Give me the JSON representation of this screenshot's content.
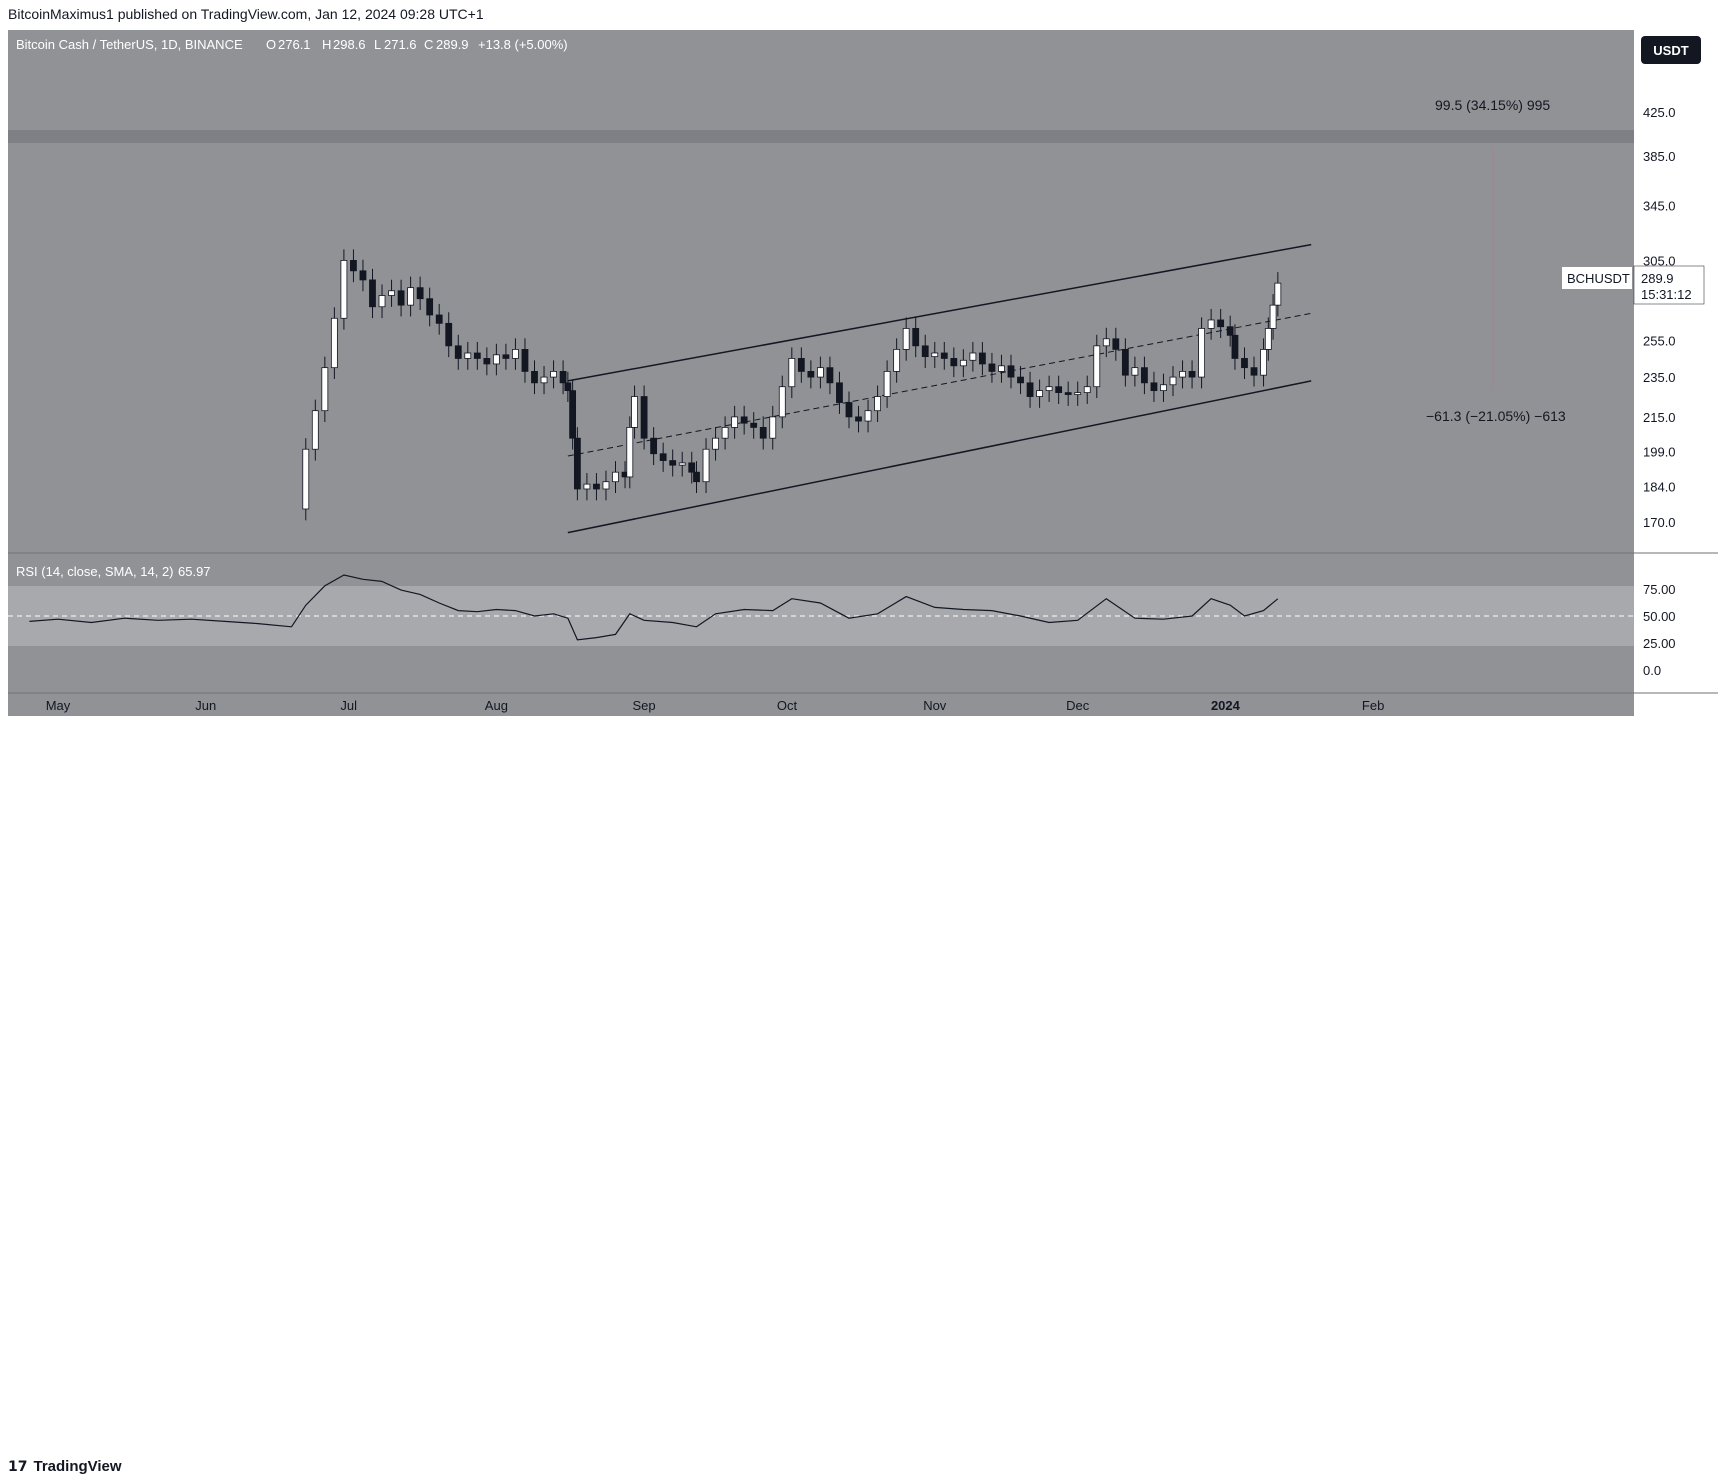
{
  "header": {
    "publisher": "BitcoinMaximus1 published on TradingView.com, Jan 12, 2024 09:28 UTC+1"
  },
  "legend": {
    "symbol": "Bitcoin Cash / TetherUS, 1D, BINANCE",
    "o_label": "O",
    "o_value": "276.1",
    "h_label": "H",
    "h_value": "298.6",
    "l_label": "L",
    "l_value": "271.6",
    "c_label": "C",
    "c_value": "289.9",
    "change": "+13.8 (+5.00%)"
  },
  "currency_label": "USDT",
  "price_tag": {
    "ticker": "BCHUSDT",
    "price": "289.9",
    "countdown": "15:31:12"
  },
  "measure_up": "99.5 (34.15%) 995",
  "measure_down": "−61.3 (−21.05%) −613",
  "rsi_legend": {
    "label": "RSI (14, close, SMA, 14, 2)",
    "value": "65.97"
  },
  "footer": {
    "logo_mark": "17",
    "brand": "TradingView"
  },
  "colors": {
    "background": "#909296",
    "rsi_band": "#a7a9ad",
    "candle_up": "#ffffff",
    "candle_down": "#131722",
    "resistance_zone": "#7e8085",
    "line": "#131722"
  },
  "chart_data": [
    {
      "type": "candlestick",
      "title": "Bitcoin Cash / TetherUS, 1D, BINANCE",
      "x_ticks": [
        "May",
        "Jun",
        "Jul",
        "Aug",
        "Sep",
        "Oct",
        "Nov",
        "Dec",
        "2024",
        "Feb"
      ],
      "y_ticks": [
        "425.0",
        "385.0",
        "345.0",
        "305.0",
        "255.0",
        "235.0",
        "215.0",
        "199.0",
        "184.0",
        "170.0"
      ],
      "y_unit": "USDT",
      "y_scale": "log",
      "resistance_zone": [
        382,
        392
      ],
      "channel": {
        "upper": [
          {
            "date": "2023-08-16",
            "value": 233
          },
          {
            "date": "2024-01-19",
            "value": 316
          }
        ],
        "lower": [
          {
            "date": "2023-08-16",
            "value": 166
          },
          {
            "date": "2024-01-19",
            "value": 233
          }
        ],
        "middle": [
          {
            "date": "2023-08-16",
            "value": 197
          },
          {
            "date": "2024-01-19",
            "value": 271
          }
        ]
      },
      "close_series": [
        [
          "2023-06-20",
          175
        ],
        [
          "2023-06-22",
          200
        ],
        [
          "2023-06-24",
          218
        ],
        [
          "2023-06-26",
          240
        ],
        [
          "2023-06-28",
          268
        ],
        [
          "2023-06-30",
          305
        ],
        [
          "2023-07-02",
          298
        ],
        [
          "2023-07-04",
          292
        ],
        [
          "2023-07-06",
          275
        ],
        [
          "2023-07-08",
          282
        ],
        [
          "2023-07-10",
          285
        ],
        [
          "2023-07-12",
          276
        ],
        [
          "2023-07-14",
          287
        ],
        [
          "2023-07-16",
          280
        ],
        [
          "2023-07-18",
          270
        ],
        [
          "2023-07-20",
          265
        ],
        [
          "2023-07-22",
          252
        ],
        [
          "2023-07-24",
          245
        ],
        [
          "2023-07-26",
          248
        ],
        [
          "2023-07-28",
          245
        ],
        [
          "2023-07-30",
          242
        ],
        [
          "2023-08-01",
          247
        ],
        [
          "2023-08-03",
          245
        ],
        [
          "2023-08-05",
          250
        ],
        [
          "2023-08-07",
          238
        ],
        [
          "2023-08-09",
          232
        ],
        [
          "2023-08-11",
          235
        ],
        [
          "2023-08-13",
          238
        ],
        [
          "2023-08-15",
          232
        ],
        [
          "2023-08-16",
          228
        ],
        [
          "2023-08-17",
          205
        ],
        [
          "2023-08-18",
          183
        ],
        [
          "2023-08-20",
          185
        ],
        [
          "2023-08-22",
          183
        ],
        [
          "2023-08-24",
          186
        ],
        [
          "2023-08-26",
          190
        ],
        [
          "2023-08-28",
          188
        ],
        [
          "2023-08-29",
          210
        ],
        [
          "2023-08-30",
          225
        ],
        [
          "2023-09-01",
          205
        ],
        [
          "2023-09-03",
          198
        ],
        [
          "2023-09-05",
          195
        ],
        [
          "2023-09-07",
          193
        ],
        [
          "2023-09-09",
          194
        ],
        [
          "2023-09-11",
          190
        ],
        [
          "2023-09-12",
          186
        ],
        [
          "2023-09-14",
          200
        ],
        [
          "2023-09-16",
          205
        ],
        [
          "2023-09-18",
          210
        ],
        [
          "2023-09-20",
          215
        ],
        [
          "2023-09-22",
          212
        ],
        [
          "2023-09-24",
          210
        ],
        [
          "2023-09-26",
          205
        ],
        [
          "2023-09-28",
          215
        ],
        [
          "2023-09-30",
          230
        ],
        [
          "2023-10-02",
          245
        ],
        [
          "2023-10-04",
          238
        ],
        [
          "2023-10-06",
          235
        ],
        [
          "2023-10-08",
          240
        ],
        [
          "2023-10-10",
          232
        ],
        [
          "2023-10-12",
          222
        ],
        [
          "2023-10-14",
          215
        ],
        [
          "2023-10-16",
          213
        ],
        [
          "2023-10-18",
          218
        ],
        [
          "2023-10-20",
          225
        ],
        [
          "2023-10-22",
          238
        ],
        [
          "2023-10-24",
          250
        ],
        [
          "2023-10-26",
          262
        ],
        [
          "2023-10-28",
          252
        ],
        [
          "2023-10-30",
          246
        ],
        [
          "2023-11-01",
          248
        ],
        [
          "2023-11-03",
          245
        ],
        [
          "2023-11-05",
          241
        ],
        [
          "2023-11-07",
          244
        ],
        [
          "2023-11-09",
          248
        ],
        [
          "2023-11-11",
          242
        ],
        [
          "2023-11-13",
          238
        ],
        [
          "2023-11-15",
          241
        ],
        [
          "2023-11-17",
          235
        ],
        [
          "2023-11-19",
          232
        ],
        [
          "2023-11-21",
          225
        ],
        [
          "2023-11-23",
          228
        ],
        [
          "2023-11-25",
          230
        ],
        [
          "2023-11-27",
          227
        ],
        [
          "2023-11-29",
          226
        ],
        [
          "2023-12-01",
          227
        ],
        [
          "2023-12-03",
          230
        ],
        [
          "2023-12-05",
          252
        ],
        [
          "2023-12-07",
          256
        ],
        [
          "2023-12-09",
          250
        ],
        [
          "2023-12-11",
          236
        ],
        [
          "2023-12-13",
          240
        ],
        [
          "2023-12-15",
          232
        ],
        [
          "2023-12-17",
          228
        ],
        [
          "2023-12-19",
          231
        ],
        [
          "2023-12-21",
          235
        ],
        [
          "2023-12-23",
          238
        ],
        [
          "2023-12-25",
          235
        ],
        [
          "2023-12-27",
          262
        ],
        [
          "2023-12-29",
          267
        ],
        [
          "2023-12-31",
          263
        ],
        [
          "2024-01-02",
          258
        ],
        [
          "2024-01-03",
          245
        ],
        [
          "2024-01-05",
          240
        ],
        [
          "2024-01-07",
          236
        ],
        [
          "2024-01-09",
          250
        ],
        [
          "2024-01-10",
          262
        ],
        [
          "2024-01-11",
          276
        ],
        [
          "2024-01-12",
          289.9
        ]
      ],
      "last_price": 289.9
    },
    {
      "type": "line",
      "title": "RSI (14, close, SMA, 14, 2)",
      "y_ticks": [
        "75.00",
        "50.00",
        "25.00",
        "0.0"
      ],
      "ylim": [
        0,
        100
      ],
      "band": [
        30,
        70
      ],
      "midline": 50,
      "last_value": 65.97,
      "values": [
        [
          "2023-04-25",
          45
        ],
        [
          "2023-05-01",
          47
        ],
        [
          "2023-05-08",
          44
        ],
        [
          "2023-05-15",
          48
        ],
        [
          "2023-05-22",
          46
        ],
        [
          "2023-05-29",
          47
        ],
        [
          "2023-06-05",
          45
        ],
        [
          "2023-06-12",
          43
        ],
        [
          "2023-06-19",
          40
        ],
        [
          "2023-06-22",
          60
        ],
        [
          "2023-06-26",
          78
        ],
        [
          "2023-06-30",
          88
        ],
        [
          "2023-07-04",
          84
        ],
        [
          "2023-07-08",
          82
        ],
        [
          "2023-07-12",
          74
        ],
        [
          "2023-07-16",
          70
        ],
        [
          "2023-07-20",
          62
        ],
        [
          "2023-07-24",
          55
        ],
        [
          "2023-07-28",
          54
        ],
        [
          "2023-08-01",
          56
        ],
        [
          "2023-08-05",
          55
        ],
        [
          "2023-08-09",
          50
        ],
        [
          "2023-08-13",
          52
        ],
        [
          "2023-08-16",
          48
        ],
        [
          "2023-08-18",
          28
        ],
        [
          "2023-08-22",
          30
        ],
        [
          "2023-08-26",
          33
        ],
        [
          "2023-08-29",
          52
        ],
        [
          "2023-09-01",
          46
        ],
        [
          "2023-09-07",
          44
        ],
        [
          "2023-09-12",
          40
        ],
        [
          "2023-09-16",
          52
        ],
        [
          "2023-09-22",
          56
        ],
        [
          "2023-09-28",
          55
        ],
        [
          "2023-10-02",
          66
        ],
        [
          "2023-10-08",
          62
        ],
        [
          "2023-10-14",
          48
        ],
        [
          "2023-10-20",
          52
        ],
        [
          "2023-10-26",
          68
        ],
        [
          "2023-11-01",
          58
        ],
        [
          "2023-11-07",
          56
        ],
        [
          "2023-11-13",
          55
        ],
        [
          "2023-11-19",
          50
        ],
        [
          "2023-11-25",
          44
        ],
        [
          "2023-12-01",
          46
        ],
        [
          "2023-12-07",
          66
        ],
        [
          "2023-12-13",
          48
        ],
        [
          "2023-12-19",
          47
        ],
        [
          "2023-12-25",
          50
        ],
        [
          "2023-12-29",
          66
        ],
        [
          "2024-01-02",
          60
        ],
        [
          "2024-01-05",
          50
        ],
        [
          "2024-01-09",
          55
        ],
        [
          "2024-01-12",
          65.97
        ]
      ]
    }
  ]
}
